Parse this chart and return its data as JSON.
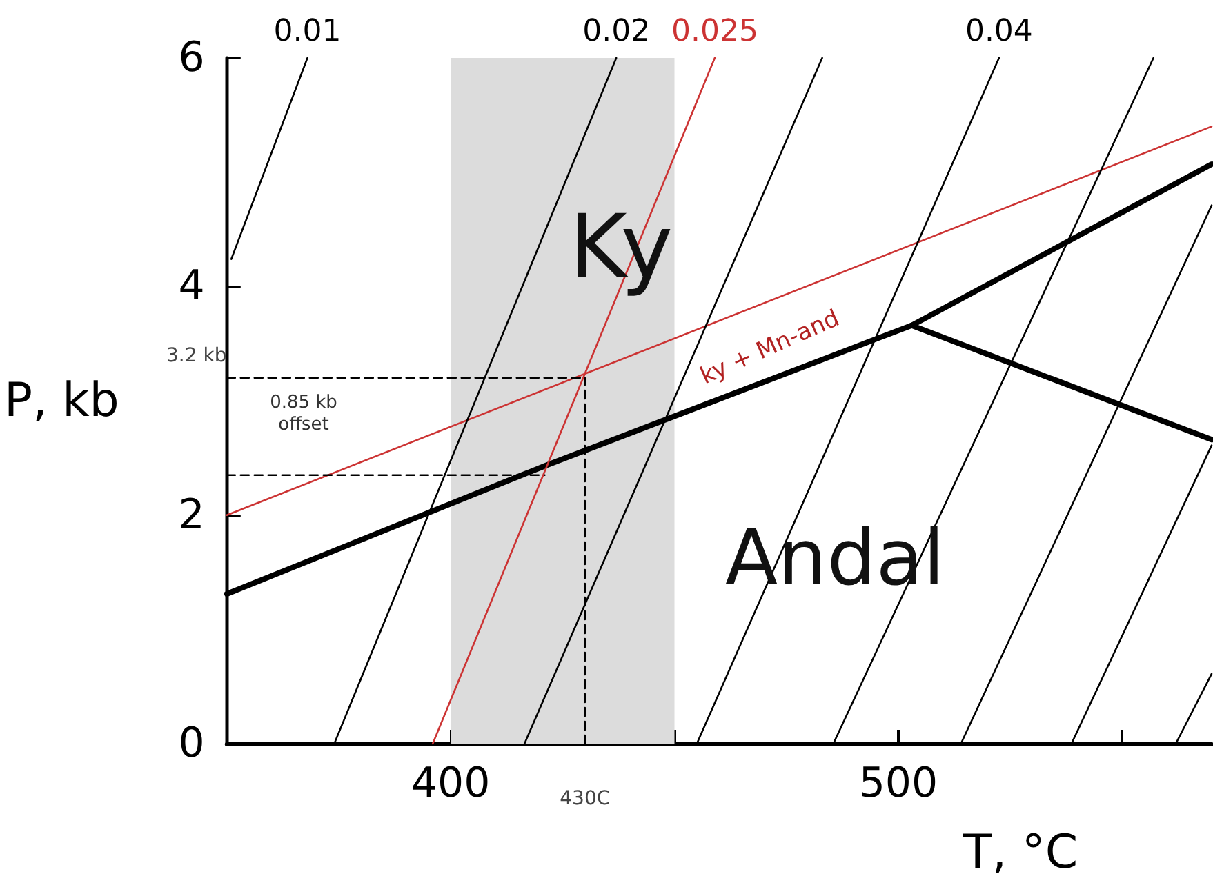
{
  "chart_data": {
    "type": "line",
    "xlabel": "T, °C",
    "ylabel": "P, kb",
    "xlim": [
      350,
      570
    ],
    "ylim": [
      0,
      6
    ],
    "xticks": [
      400,
      {
        "value": 450,
        "label": null
      },
      500,
      {
        "value": 550,
        "label": null
      }
    ],
    "yticks": [
      0,
      2,
      4,
      6
    ],
    "grid": false,
    "marker": "none",
    "bands": [
      {
        "axis": "x",
        "from": 400,
        "to": 450,
        "color": "#dcdcdc"
      }
    ],
    "annotations": [
      "Ky",
      "Andal",
      "ky + Mn-and",
      "0.85 kb offset",
      {
        "text": "430C",
        "x": 430,
        "y": 0
      },
      {
        "text": "3.2 kb",
        "x": 350,
        "y": 3.2
      }
    ],
    "series": [
      {
        "color": "#000000",
        "x": [
          350,
          421,
          503,
          570
        ],
        "values": [
          1.31,
          2.43,
          3.66,
          5.07
        ]
      },
      {
        "color": "#000000",
        "x": [
          503,
          570
        ],
        "values": [
          3.66,
          2.66
        ]
      },
      {
        "color": "#cc3333",
        "x": [
          350,
          570
        ],
        "values": [
          2.0,
          5.4
        ]
      },
      {
        "color": "#000000",
        "line_style": "dashed",
        "x": [
          350,
          430
        ],
        "values": [
          3.2,
          3.2
        ]
      },
      {
        "color": "#000000",
        "line_style": "dashed",
        "x": [
          350,
          421
        ],
        "values": [
          2.35,
          2.35
        ]
      },
      {
        "color": "#000000",
        "line_style": "dashed",
        "x": [
          430,
          430
        ],
        "values": [
          0,
          3.2
        ]
      },
      {
        "name": "0.01",
        "color": "#000000",
        "x": [
          351,
          368
        ],
        "values": [
          4.24,
          6
        ]
      },
      {
        "name": "0.02",
        "color": "#000000",
        "x": [
          374,
          437
        ],
        "values": [
          0,
          6
        ]
      },
      {
        "name": "0.025",
        "color": "#cc3333",
        "x": [
          396,
          459
        ],
        "values": [
          0,
          6
        ]
      },
      {
        "color": "#000000",
        "x": [
          416.5,
          483
        ],
        "values": [
          0,
          6
        ]
      },
      {
        "name": "0.04",
        "color": "#000000",
        "x": [
          455,
          522.5
        ],
        "values": [
          0,
          6
        ]
      },
      {
        "color": "#000000",
        "x": [
          485.5,
          557
        ],
        "values": [
          0,
          6
        ]
      },
      {
        "color": "#000000",
        "x": [
          514,
          570
        ],
        "values": [
          0,
          4.71
        ]
      },
      {
        "color": "#000000",
        "x": [
          538.7,
          570
        ],
        "values": [
          0,
          2.61
        ]
      },
      {
        "color": "#000000",
        "x": [
          562,
          570
        ],
        "values": [
          0,
          0.61
        ]
      }
    ]
  }
}
